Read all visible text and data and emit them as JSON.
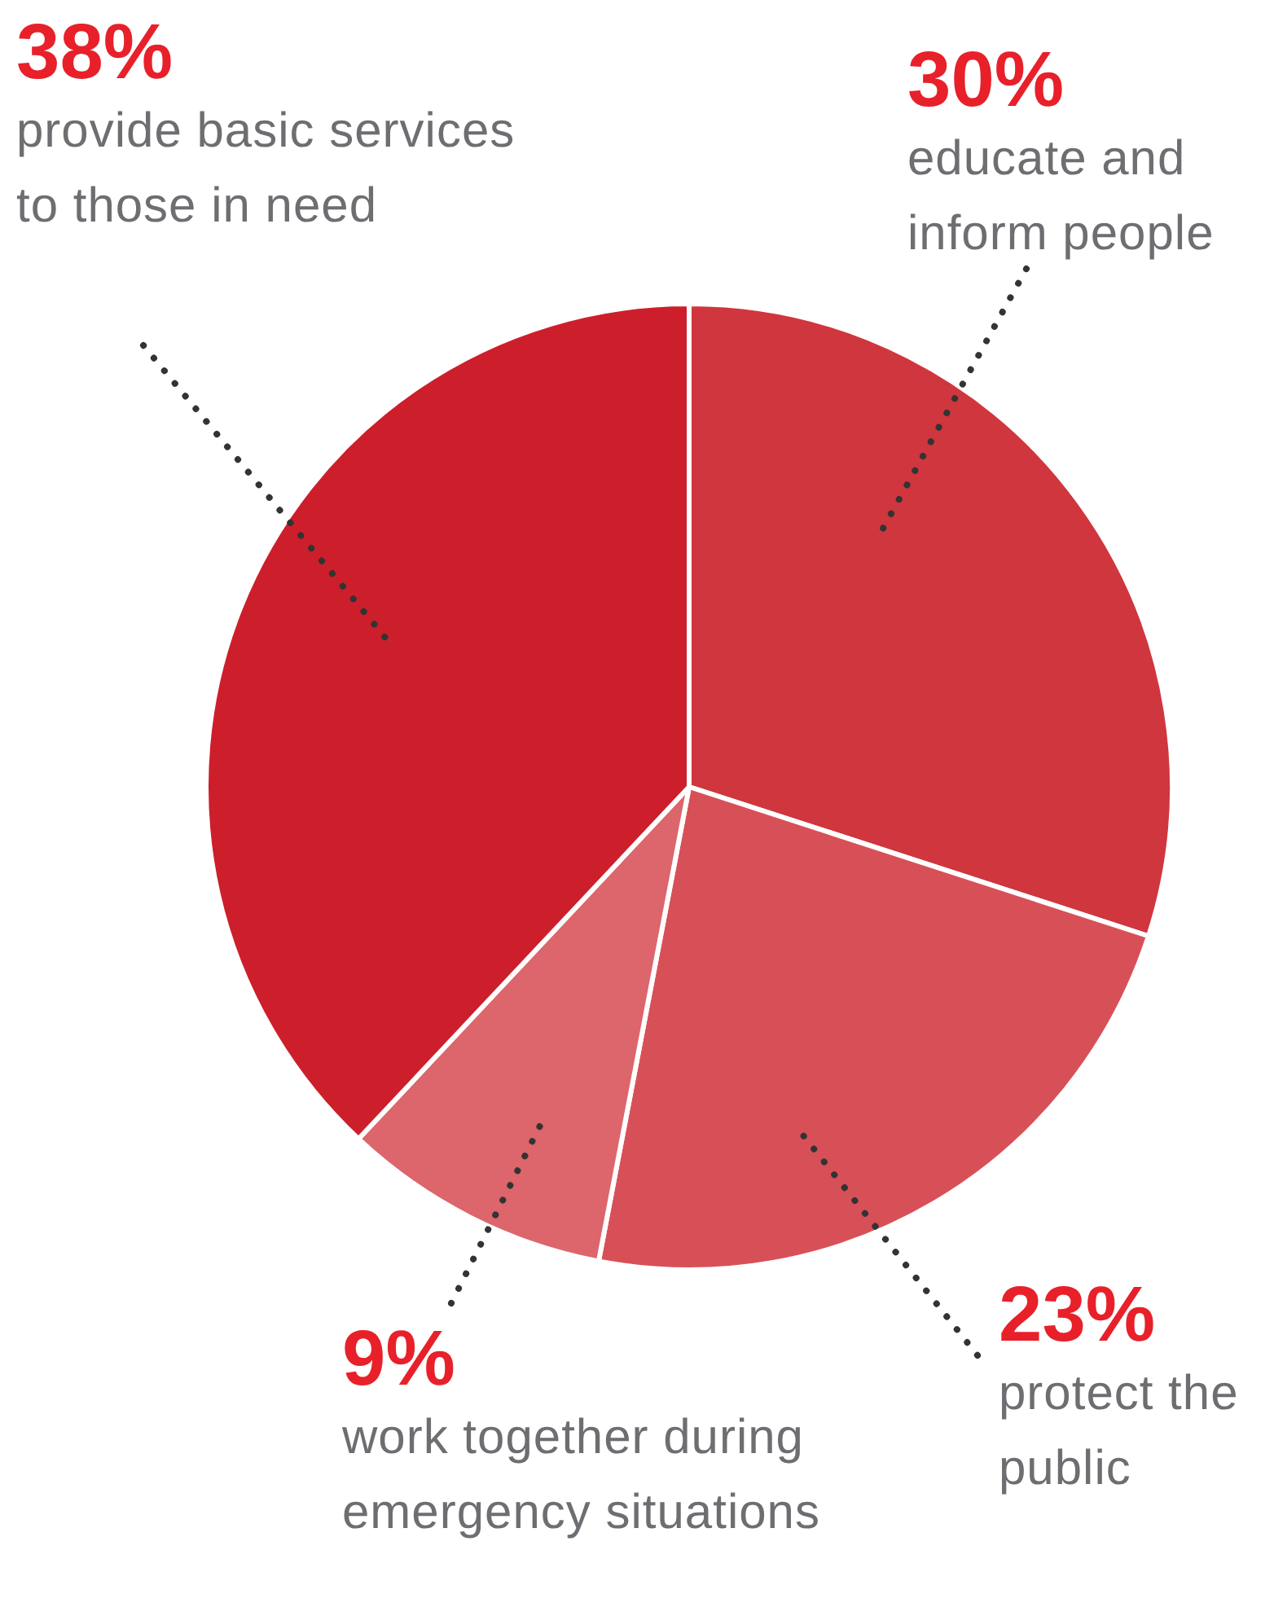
{
  "chart_data": {
    "type": "pie",
    "categories": [
      "educate and inform people",
      "protect the public",
      "work together during emergency situations",
      "provide basic services to those in need"
    ],
    "values": [
      30,
      23,
      9,
      38
    ],
    "colors": [
      "#d0363d",
      "#d85057",
      "#dc666b",
      "#cc1f2b"
    ],
    "value_labels": [
      "30%",
      "23%",
      "9%",
      "38%"
    ],
    "legend": false
  }
}
